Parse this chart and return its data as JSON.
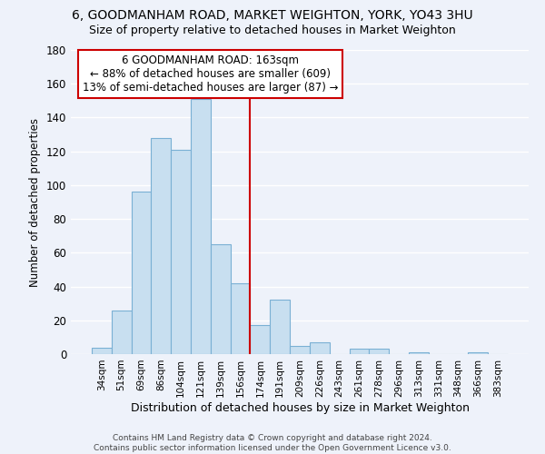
{
  "title_line1": "6, GOODMANHAM ROAD, MARKET WEIGHTON, YORK, YO43 3HU",
  "title_line2": "Size of property relative to detached houses in Market Weighton",
  "xlabel": "Distribution of detached houses by size in Market Weighton",
  "ylabel": "Number of detached properties",
  "bar_labels": [
    "34sqm",
    "51sqm",
    "69sqm",
    "86sqm",
    "104sqm",
    "121sqm",
    "139sqm",
    "156sqm",
    "174sqm",
    "191sqm",
    "209sqm",
    "226sqm",
    "243sqm",
    "261sqm",
    "278sqm",
    "296sqm",
    "313sqm",
    "331sqm",
    "348sqm",
    "366sqm",
    "383sqm"
  ],
  "bar_values": [
    4,
    26,
    96,
    128,
    121,
    151,
    65,
    42,
    17,
    32,
    5,
    7,
    0,
    3,
    3,
    0,
    1,
    0,
    0,
    1,
    0
  ],
  "bar_color": "#c8dff0",
  "bar_edge_color": "#7ab0d4",
  "highlight_line_color": "#cc0000",
  "annotation_title": "6 GOODMANHAM ROAD: 163sqm",
  "annotation_line1": "← 88% of detached houses are smaller (609)",
  "annotation_line2": "13% of semi-detached houses are larger (87) →",
  "annotation_box_color": "white",
  "annotation_box_edge_color": "#cc0000",
  "ylim": [
    0,
    180
  ],
  "yticks": [
    0,
    20,
    40,
    60,
    80,
    100,
    120,
    140,
    160,
    180
  ],
  "footer_line1": "Contains HM Land Registry data © Crown copyright and database right 2024.",
  "footer_line2": "Contains public sector information licensed under the Open Government Licence v3.0.",
  "background_color": "#eef2fa",
  "grid_color": "white",
  "title_fontsize": 10,
  "subtitle_fontsize": 9,
  "ylabel_text": "Number of detached properties"
}
